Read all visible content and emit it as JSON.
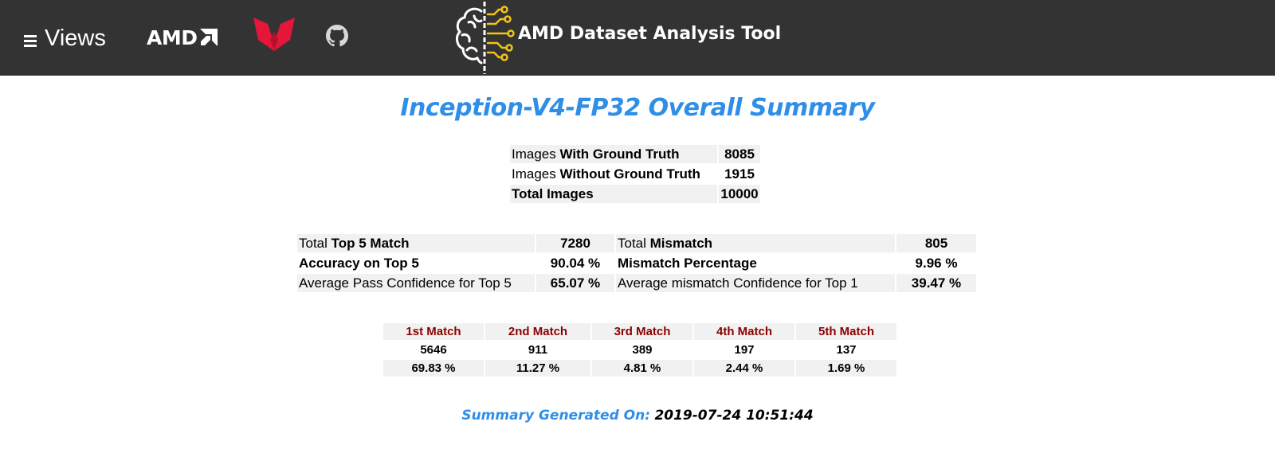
{
  "header": {
    "views_label": "Views",
    "amd_logo_text": "AMD",
    "app_title": "AMD Dataset Analysis Tool",
    "background_color": "#333333"
  },
  "title": "Inception-V4-FP32 Overall Summary",
  "images_table": {
    "rows": [
      {
        "prefix": "Images ",
        "bold": "With Ground Truth",
        "value": "8085"
      },
      {
        "prefix": "Images ",
        "bold": "Without Ground Truth",
        "value": "1915"
      },
      {
        "prefix": "",
        "bold": "Total Images",
        "value": "10000"
      }
    ]
  },
  "match_table": {
    "rows": [
      {
        "left_prefix": "Total ",
        "left_bold": "Top 5 Match",
        "left_value": "7280",
        "right_prefix": "Total ",
        "right_bold": "Mismatch",
        "right_value": "805"
      },
      {
        "left_prefix": "",
        "left_bold": "Accuracy on Top 5",
        "left_value": "90.04 %",
        "right_prefix": "",
        "right_bold": "Mismatch Percentage",
        "right_value": "9.96 %"
      },
      {
        "left_prefix": "Average Pass Confidence for Top 5",
        "left_bold": "",
        "left_value": "65.07 %",
        "right_prefix": "Average mismatch Confidence for Top 1",
        "right_bold": "",
        "right_value": "39.47 %"
      }
    ]
  },
  "rank_table": {
    "headers": [
      "1st Match",
      "2nd Match",
      "3rd Match",
      "4th Match",
      "5th Match"
    ],
    "counts": [
      "5646",
      "911",
      "389",
      "197",
      "137"
    ],
    "percents": [
      "69.83 %",
      "11.27 %",
      "4.81 %",
      "2.44 %",
      "1.69 %"
    ]
  },
  "footer": {
    "label": "Summary Generated On:",
    "timestamp": "2019-07-24 10:51:44"
  },
  "icons": {
    "menu": "hamburger-menu-icon",
    "amd": "amd-logo",
    "ryzen": "ryzen-logo-icon",
    "github": "github-icon",
    "brain": "brain-circuit-logo-icon"
  },
  "colors": {
    "title_blue": "#2e8ee8",
    "rank_header_red": "#8b0000",
    "ryzen_red": "#e4173a",
    "brain_gold": "#f0c419"
  }
}
